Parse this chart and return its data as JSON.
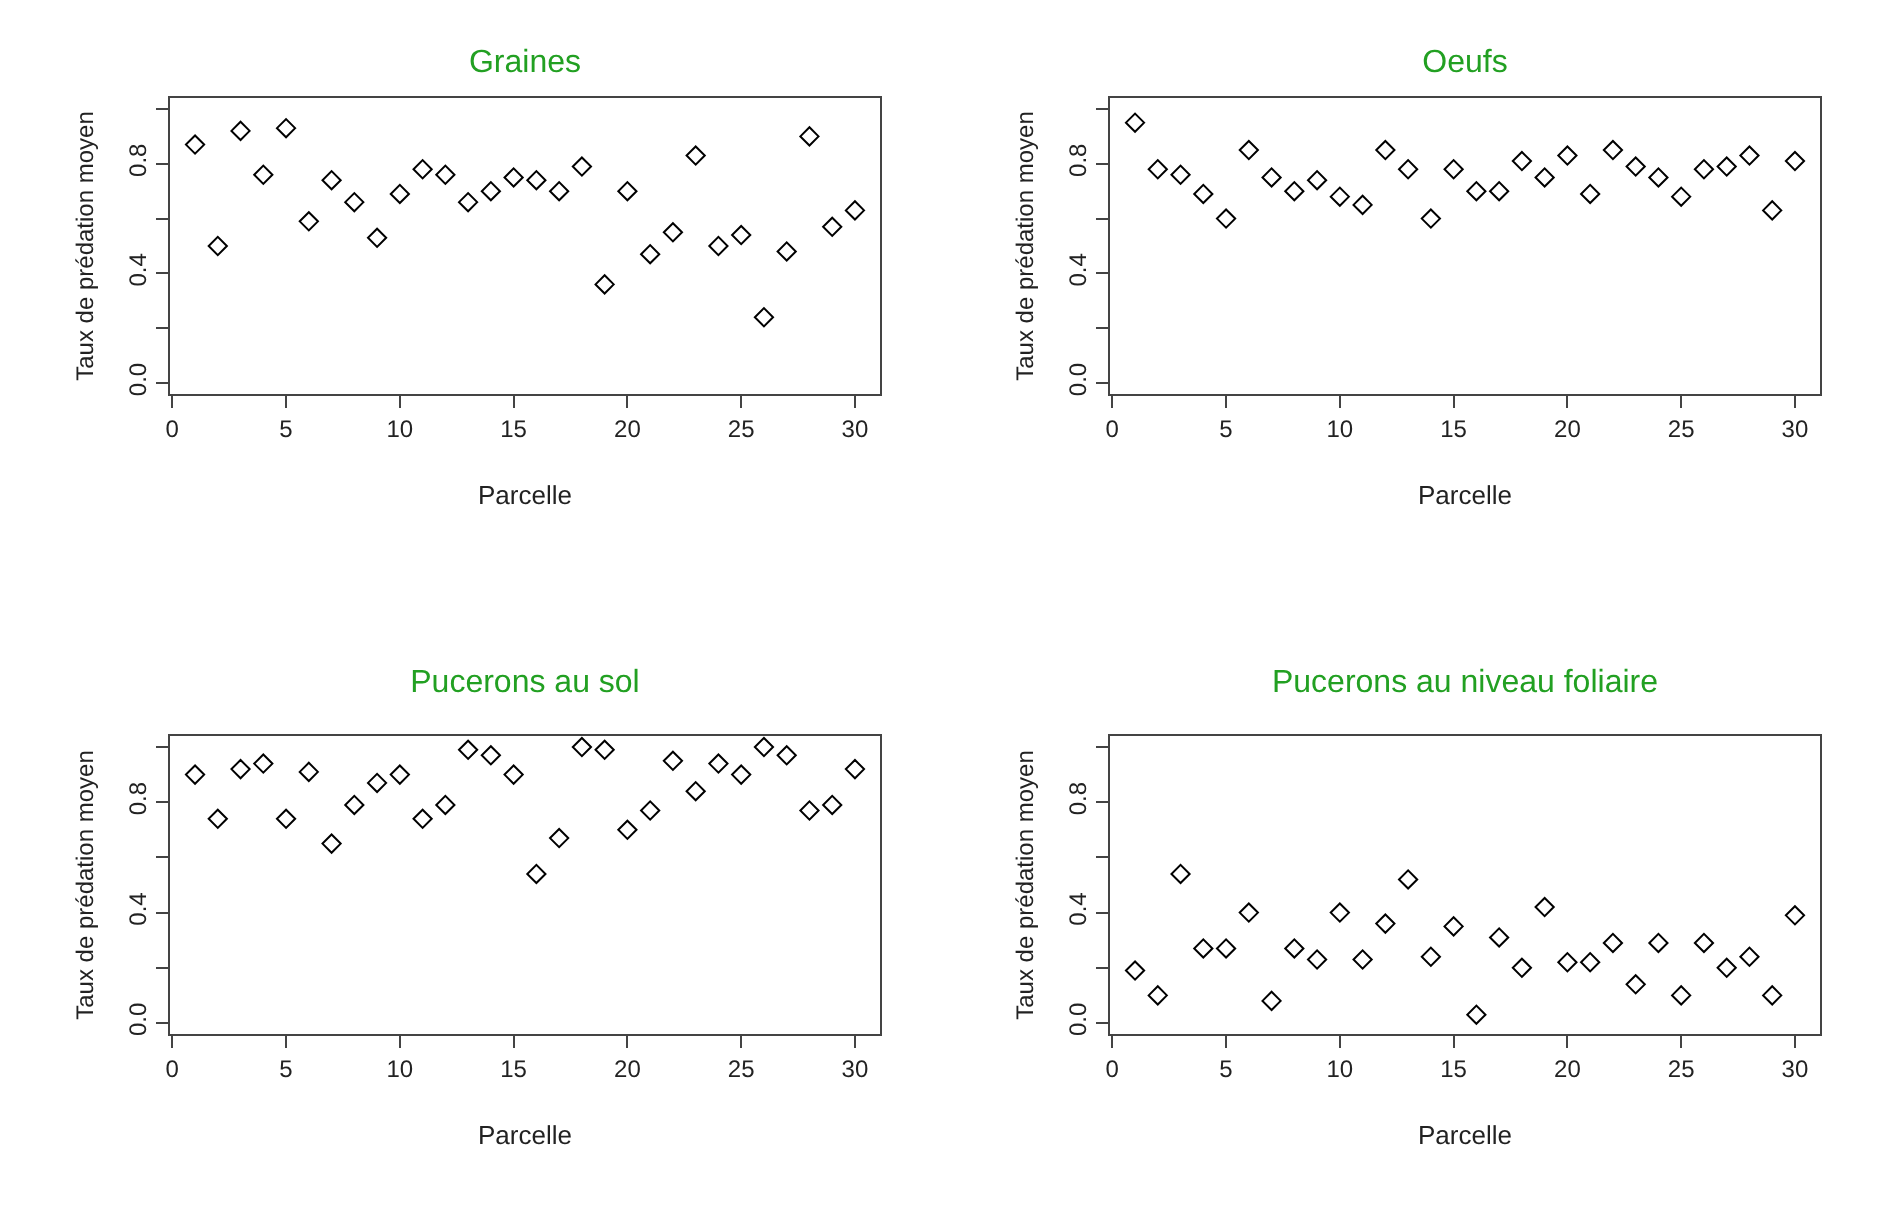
{
  "chart_data": [
    {
      "type": "scatter",
      "title": "Graines",
      "xlabel": "Parcelle",
      "ylabel": "Taux de prédation moyen",
      "color": "#000000",
      "marker": "diamond",
      "grid": false,
      "xlim": [
        -0.1,
        31.1
      ],
      "ylim": [
        -0.04,
        1.04
      ],
      "xticks": [
        0,
        5,
        10,
        15,
        20,
        25,
        30
      ],
      "yticks": [
        {
          "value": 0,
          "label": "0.0"
        },
        {
          "value": 0.2,
          "label": null
        },
        {
          "value": 0.4,
          "label": "0.4"
        },
        {
          "value": 0.6,
          "label": null
        },
        {
          "value": 0.8,
          "label": "0.8"
        },
        {
          "value": 1.0,
          "label": null
        }
      ],
      "x": [
        1,
        2,
        3,
        4,
        5,
        6,
        7,
        8,
        9,
        10,
        11,
        12,
        13,
        14,
        15,
        16,
        17,
        18,
        19,
        20,
        21,
        22,
        23,
        24,
        25,
        26,
        27,
        28,
        29,
        30
      ],
      "values": [
        0.87,
        0.5,
        0.92,
        0.76,
        0.93,
        0.59,
        0.74,
        0.66,
        0.53,
        0.69,
        0.78,
        0.76,
        0.66,
        0.7,
        0.75,
        0.74,
        0.7,
        0.79,
        0.36,
        0.7,
        0.47,
        0.55,
        0.83,
        0.5,
        0.54,
        0.24,
        0.48,
        0.9,
        0.57,
        0.63
      ]
    },
    {
      "type": "scatter",
      "title": "Oeufs",
      "xlabel": "Parcelle",
      "ylabel": "Taux de prédation moyen",
      "color": "#000000",
      "marker": "diamond",
      "grid": false,
      "xlim": [
        -0.1,
        31.1
      ],
      "ylim": [
        -0.04,
        1.04
      ],
      "xticks": [
        0,
        5,
        10,
        15,
        20,
        25,
        30
      ],
      "yticks": [
        {
          "value": 0,
          "label": "0.0"
        },
        {
          "value": 0.2,
          "label": null
        },
        {
          "value": 0.4,
          "label": "0.4"
        },
        {
          "value": 0.6,
          "label": null
        },
        {
          "value": 0.8,
          "label": "0.8"
        },
        {
          "value": 1.0,
          "label": null
        }
      ],
      "x": [
        1,
        2,
        3,
        4,
        5,
        6,
        7,
        8,
        9,
        10,
        11,
        12,
        13,
        14,
        15,
        16,
        17,
        18,
        19,
        20,
        21,
        22,
        23,
        24,
        25,
        26,
        27,
        28,
        29,
        30
      ],
      "values": [
        0.95,
        0.78,
        0.76,
        0.69,
        0.6,
        0.85,
        0.75,
        0.7,
        0.74,
        0.68,
        0.65,
        0.85,
        0.78,
        0.6,
        0.78,
        0.7,
        0.7,
        0.81,
        0.75,
        0.83,
        0.69,
        0.85,
        0.79,
        0.75,
        0.68,
        0.78,
        0.79,
        0.83,
        0.63,
        0.81
      ]
    },
    {
      "type": "scatter",
      "title": "Pucerons au sol",
      "xlabel": "Parcelle",
      "ylabel": "Taux de prédation moyen",
      "color": "#000000",
      "marker": "diamond",
      "grid": false,
      "xlim": [
        -0.1,
        31.1
      ],
      "ylim": [
        -0.04,
        1.04
      ],
      "xticks": [
        0,
        5,
        10,
        15,
        20,
        25,
        30
      ],
      "yticks": [
        {
          "value": 0,
          "label": "0.0"
        },
        {
          "value": 0.2,
          "label": null
        },
        {
          "value": 0.4,
          "label": "0.4"
        },
        {
          "value": 0.6,
          "label": null
        },
        {
          "value": 0.8,
          "label": "0.8"
        },
        {
          "value": 1.0,
          "label": null
        }
      ],
      "x": [
        1,
        2,
        3,
        4,
        5,
        6,
        7,
        8,
        9,
        10,
        11,
        12,
        13,
        14,
        15,
        16,
        17,
        18,
        19,
        20,
        21,
        22,
        23,
        24,
        25,
        26,
        27,
        28,
        29,
        30
      ],
      "values": [
        0.9,
        0.74,
        0.92,
        0.94,
        0.74,
        0.91,
        0.65,
        0.79,
        0.87,
        0.9,
        0.74,
        0.79,
        0.99,
        0.97,
        0.9,
        0.54,
        0.67,
        1.0,
        0.99,
        0.7,
        0.77,
        0.95,
        0.84,
        0.94,
        0.9,
        1.0,
        0.97,
        0.77,
        0.79,
        0.92
      ]
    },
    {
      "type": "scatter",
      "title": "Pucerons au niveau foliaire",
      "xlabel": "Parcelle",
      "ylabel": "Taux de prédation moyen",
      "color": "#000000",
      "marker": "diamond",
      "grid": false,
      "xlim": [
        -0.1,
        31.1
      ],
      "ylim": [
        -0.04,
        1.04
      ],
      "xticks": [
        0,
        5,
        10,
        15,
        20,
        25,
        30
      ],
      "yticks": [
        {
          "value": 0,
          "label": "0.0"
        },
        {
          "value": 0.2,
          "label": null
        },
        {
          "value": 0.4,
          "label": "0.4"
        },
        {
          "value": 0.6,
          "label": null
        },
        {
          "value": 0.8,
          "label": "0.8"
        },
        {
          "value": 1.0,
          "label": null
        }
      ],
      "x": [
        1,
        2,
        3,
        4,
        5,
        6,
        7,
        8,
        9,
        10,
        11,
        12,
        13,
        14,
        15,
        16,
        17,
        18,
        19,
        20,
        21,
        22,
        23,
        24,
        25,
        26,
        27,
        28,
        29,
        30
      ],
      "values": [
        0.19,
        0.1,
        0.54,
        0.27,
        0.27,
        0.4,
        0.08,
        0.27,
        0.23,
        0.4,
        0.23,
        0.36,
        0.52,
        0.24,
        0.35,
        0.03,
        0.31,
        0.2,
        0.42,
        0.22,
        0.22,
        0.29,
        0.14,
        0.29,
        0.1,
        0.29,
        0.2,
        0.24,
        0.1,
        0.39
      ]
    }
  ]
}
